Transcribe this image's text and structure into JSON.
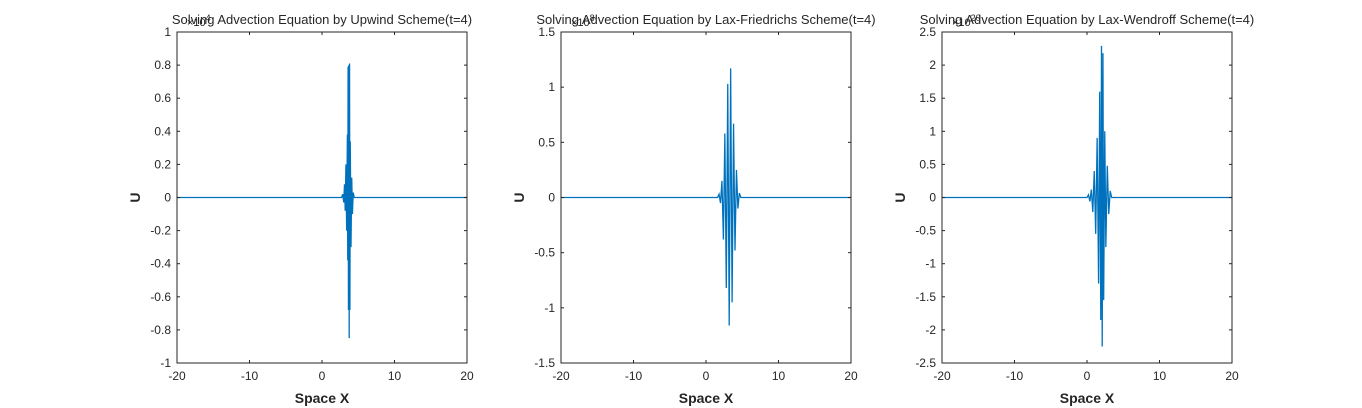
{
  "chart_data": [
    {
      "type": "line",
      "title": "Solving Advection Equation by Upwind Scheme(t=4)",
      "xlabel": "Space X",
      "ylabel": "U",
      "xlim": [
        -20,
        20
      ],
      "ylim": [
        -1,
        1
      ],
      "x_ticks": [
        "-20",
        "-10",
        "0",
        "10",
        "20"
      ],
      "y_ticks": [
        "1",
        "0.8",
        "0.6",
        "0.4",
        "0.2",
        "0",
        "-0.2",
        "-0.4",
        "-0.6",
        "-0.8",
        "-1"
      ],
      "y_exponent": "×10^4",
      "series_color": "#0072BD",
      "series": [
        {
          "x": [
            -20,
            2.7,
            2.85,
            3.0,
            3.1,
            3.2,
            3.3,
            3.4,
            3.5,
            3.55,
            3.6,
            3.65,
            3.7,
            3.75,
            3.8,
            3.85,
            3.9,
            4.0,
            4.1,
            4.2,
            4.3,
            4.45,
            20
          ],
          "y": [
            0,
            0,
            0.02,
            -0.03,
            0.08,
            -0.08,
            0.2,
            -0.2,
            0.38,
            -0.38,
            0.79,
            -0.68,
            0.8,
            -0.85,
            0.81,
            -0.68,
            0.34,
            -0.3,
            0.12,
            -0.1,
            0.03,
            0,
            0
          ]
        }
      ]
    },
    {
      "type": "line",
      "title": "Solving Advection Equation by Lax-Friedrichs Scheme(t=4)",
      "xlabel": "Space X",
      "ylabel": "U",
      "xlim": [
        -20,
        20
      ],
      "ylim": [
        -1.5,
        1.5
      ],
      "x_ticks": [
        "-20",
        "-10",
        "0",
        "10",
        "20"
      ],
      "y_ticks": [
        "1.5",
        "1",
        "0.5",
        "0",
        "-0.5",
        "-1",
        "-1.5"
      ],
      "y_exponent": "×10^8",
      "series_color": "#0072BD",
      "series": [
        {
          "x": [
            -20,
            1.6,
            1.8,
            2.0,
            2.2,
            2.4,
            2.6,
            2.8,
            3.0,
            3.2,
            3.4,
            3.6,
            3.8,
            4.0,
            4.2,
            4.4,
            4.6,
            4.8,
            20
          ],
          "y": [
            0,
            0,
            0.03,
            -0.05,
            0.15,
            -0.38,
            0.58,
            -0.82,
            1.03,
            -1.16,
            1.17,
            -0.95,
            0.67,
            -0.48,
            0.25,
            -0.1,
            0.04,
            0,
            0
          ]
        }
      ]
    },
    {
      "type": "line",
      "title": "Solving Advection Equation by Lax-Wendroff Scheme(t=4)",
      "xlabel": "Space X",
      "ylabel": "U",
      "xlim": [
        -20,
        20
      ],
      "ylim": [
        -2.5,
        2.5
      ],
      "x_ticks": [
        "-20",
        "-10",
        "0",
        "10",
        "20"
      ],
      "y_ticks": [
        "2.5",
        "2",
        "1.5",
        "1",
        "0.5",
        "0",
        "-0.5",
        "-1",
        "-1.5",
        "-2",
        "-2.5"
      ],
      "y_exponent": "×10^20",
      "series_color": "#0072BD",
      "series": [
        {
          "x": [
            -20,
            0.0,
            0.2,
            0.4,
            0.6,
            0.8,
            1.0,
            1.2,
            1.4,
            1.6,
            1.75,
            1.9,
            2.0,
            2.1,
            2.2,
            2.3,
            2.45,
            2.6,
            2.8,
            3.0,
            3.2,
            3.4,
            20
          ],
          "y": [
            0,
            0,
            0.04,
            -0.06,
            0.12,
            -0.22,
            0.4,
            -0.55,
            0.9,
            -1.3,
            1.6,
            -1.85,
            2.29,
            -2.25,
            2.18,
            -1.55,
            1.0,
            -0.75,
            0.48,
            -0.25,
            0.1,
            0,
            0
          ]
        }
      ]
    }
  ]
}
